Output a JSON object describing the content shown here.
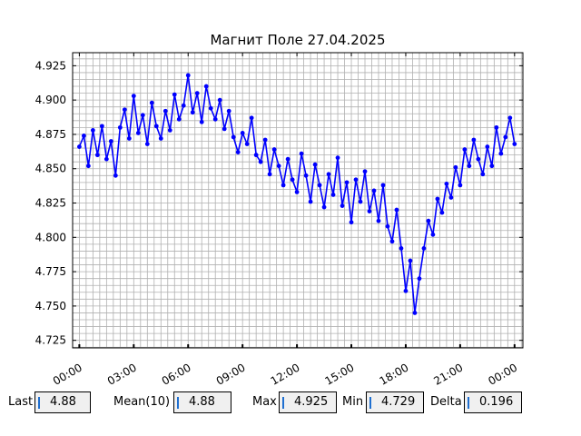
{
  "chart_data": {
    "type": "line",
    "title": "Магнит Поле 27.04.2025",
    "xlabel": "",
    "ylabel": "",
    "x_unit": "hours",
    "xlim": [
      -0.37,
      24.46
    ],
    "ylim": [
      4.7195,
      4.9345
    ],
    "grid": true,
    "series_color": "#0000ff",
    "x_ticks": [
      {
        "value": 0,
        "label": "00:00"
      },
      {
        "value": 3,
        "label": "03:00"
      },
      {
        "value": 6,
        "label": "06:00"
      },
      {
        "value": 9,
        "label": "09:00"
      },
      {
        "value": 12,
        "label": "12:00"
      },
      {
        "value": 15,
        "label": "15:00"
      },
      {
        "value": 18,
        "label": "18:00"
      },
      {
        "value": 21,
        "label": "21:00"
      },
      {
        "value": 24,
        "label": "00:00"
      }
    ],
    "y_ticks": [
      {
        "value": 4.725,
        "label": "4.725"
      },
      {
        "value": 4.75,
        "label": "4.750"
      },
      {
        "value": 4.775,
        "label": "4.775"
      },
      {
        "value": 4.8,
        "label": "4.800"
      },
      {
        "value": 4.825,
        "label": "4.825"
      },
      {
        "value": 4.85,
        "label": "4.850"
      },
      {
        "value": 4.875,
        "label": "4.875"
      },
      {
        "value": 4.9,
        "label": "4.900"
      },
      {
        "value": 4.925,
        "label": "4.925"
      }
    ],
    "series": [
      {
        "x": [
          0.0,
          0.25,
          0.5,
          0.75,
          1.0,
          1.25,
          1.5,
          1.75,
          2.0,
          2.25,
          2.5,
          2.75,
          3.0,
          3.25,
          3.5,
          3.75,
          4.0,
          4.25,
          4.5,
          4.75,
          5.0,
          5.25,
          5.5,
          5.75,
          6.0,
          6.25,
          6.5,
          6.75,
          7.0,
          7.25,
          7.5,
          7.75,
          8.0,
          8.25,
          8.5,
          8.75,
          9.0,
          9.25,
          9.5,
          9.75,
          10.0,
          10.25,
          10.5,
          10.75,
          11.0,
          11.25,
          11.5,
          11.75,
          12.0,
          12.25,
          12.5,
          12.75,
          13.0,
          13.25,
          13.5,
          13.75,
          14.0,
          14.25,
          14.5,
          14.75,
          15.0,
          15.25,
          15.5,
          15.75,
          16.0,
          16.25,
          16.5,
          16.75,
          17.0,
          17.25,
          17.5,
          17.75,
          18.0,
          18.25,
          18.5,
          18.75,
          19.0,
          19.25,
          19.5,
          19.75,
          20.0,
          20.25,
          20.5,
          20.75,
          21.0,
          21.25,
          21.5,
          21.75,
          22.0,
          22.25,
          22.5,
          22.75,
          23.0,
          23.25,
          23.5,
          23.75,
          24.0
        ],
        "y": [
          4.866,
          4.874,
          4.852,
          4.878,
          4.86,
          4.881,
          4.857,
          4.87,
          4.845,
          4.88,
          4.893,
          4.872,
          4.903,
          4.876,
          4.889,
          4.868,
          4.898,
          4.881,
          4.872,
          4.892,
          4.878,
          4.904,
          4.886,
          4.896,
          4.918,
          4.891,
          4.905,
          4.884,
          4.91,
          4.894,
          4.886,
          4.9,
          4.879,
          4.892,
          4.873,
          4.862,
          4.876,
          4.868,
          4.887,
          4.86,
          4.855,
          4.871,
          4.846,
          4.864,
          4.852,
          4.838,
          4.857,
          4.842,
          4.833,
          4.861,
          4.845,
          4.826,
          4.853,
          4.838,
          4.822,
          4.846,
          4.831,
          4.858,
          4.823,
          4.84,
          4.811,
          4.842,
          4.826,
          4.848,
          4.819,
          4.834,
          4.812,
          4.838,
          4.808,
          4.797,
          4.82,
          4.792,
          4.761,
          4.783,
          4.745,
          4.77,
          4.792,
          4.812,
          4.802,
          4.828,
          4.818,
          4.839,
          4.829,
          4.851,
          4.838,
          4.864,
          4.852,
          4.871,
          4.857,
          4.846,
          4.866,
          4.852,
          4.88,
          4.861,
          4.873,
          4.887,
          4.868
        ]
      }
    ]
  },
  "stats": {
    "last_label": "Last",
    "last_value": "4.88",
    "mean_label": "Mean(10)",
    "mean_value": "4.88",
    "max_label": "Max",
    "max_value": "4.925",
    "min_label": "Min",
    "min_value": "4.729",
    "delta_label": "Delta",
    "delta_value": "0.196"
  }
}
